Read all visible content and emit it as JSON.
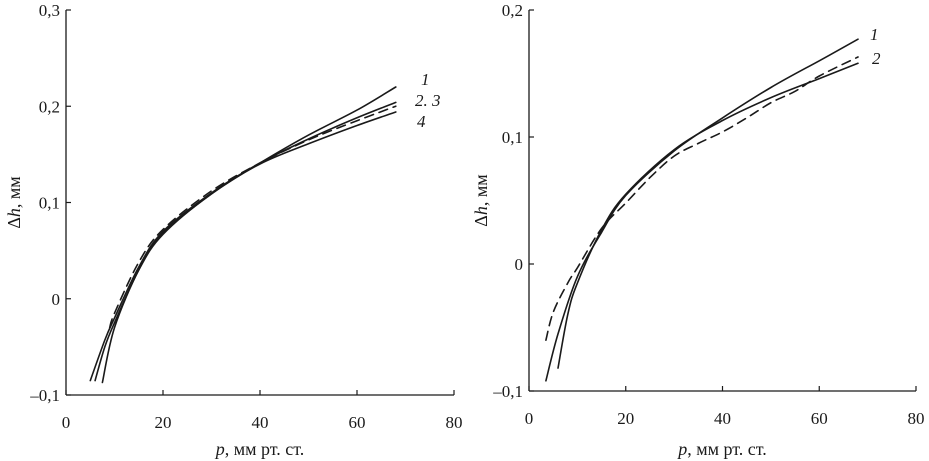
{
  "chart_data": [
    {
      "type": "line",
      "title": "",
      "xlabel": "p, мм рт. ст.",
      "ylabel": "Δh, мм",
      "xlim": [
        0,
        80
      ],
      "ylim": [
        -0.1,
        0.3
      ],
      "xticks": [
        "0",
        "20",
        "40",
        "60",
        "80"
      ],
      "yticks": [
        "–0,1",
        "0",
        "0,1",
        "0,2",
        "0,3"
      ],
      "curve_labels": [
        "1",
        "2. 3",
        "4"
      ],
      "series": [
        {
          "label": "1",
          "style": "solid",
          "x": [
            7.5,
            10,
            15,
            20,
            30,
            40,
            50,
            60,
            68
          ],
          "y": [
            -0.087,
            -0.03,
            0.03,
            0.068,
            0.109,
            0.141,
            0.17,
            0.196,
            0.22
          ]
        },
        {
          "label": "2. 3",
          "style": "solid",
          "x": [
            5,
            8,
            10,
            15,
            20,
            30,
            40,
            50,
            60,
            68
          ],
          "y": [
            -0.085,
            -0.043,
            -0.02,
            0.033,
            0.07,
            0.11,
            0.141,
            0.166,
            0.188,
            0.204
          ]
        },
        {
          "label": "2. 3",
          "style": "dashed",
          "x": [
            9,
            10,
            15,
            20,
            30,
            40,
            50,
            60,
            68
          ],
          "y": [
            -0.03,
            -0.015,
            0.038,
            0.072,
            0.112,
            0.141,
            0.165,
            0.185,
            0.2
          ]
        },
        {
          "label": "4",
          "style": "solid",
          "x": [
            6,
            8,
            10,
            15,
            20,
            30,
            40,
            50,
            60,
            68
          ],
          "y": [
            -0.085,
            -0.05,
            -0.025,
            0.03,
            0.067,
            0.109,
            0.14,
            0.161,
            0.18,
            0.194
          ]
        }
      ]
    },
    {
      "type": "line",
      "title": "",
      "xlabel": "p, мм рт. ст.",
      "ylabel": "Δh, мм",
      "xlim": [
        0,
        80
      ],
      "ylim": [
        -0.1,
        0.2
      ],
      "xticks": [
        "0",
        "20",
        "40",
        "60",
        "80"
      ],
      "yticks": [
        "–0,1",
        "0",
        "0,1",
        "0,2"
      ],
      "curve_labels": [
        "1",
        "2"
      ],
      "series": [
        {
          "label": "1",
          "style": "solid",
          "x": [
            3.5,
            6,
            10,
            15,
            20,
            30,
            40,
            50,
            60,
            68
          ],
          "y": [
            -0.092,
            -0.055,
            -0.01,
            0.025,
            0.054,
            0.089,
            0.115,
            0.139,
            0.16,
            0.177
          ]
        },
        {
          "label": "1",
          "style": "solid",
          "x": [
            6,
            8,
            10,
            15,
            20,
            30,
            40,
            50,
            60,
            68
          ],
          "y": [
            -0.082,
            -0.04,
            -0.015,
            0.027,
            0.055,
            0.09,
            0.113,
            0.131,
            0.146,
            0.158
          ]
        },
        {
          "label": "2",
          "style": "dashed",
          "x": [
            3.5,
            5,
            8,
            10,
            15,
            20,
            25,
            30,
            35,
            40,
            45,
            50,
            55,
            60,
            68
          ],
          "y": [
            -0.06,
            -0.038,
            -0.015,
            -0.003,
            0.028,
            0.048,
            0.068,
            0.085,
            0.095,
            0.104,
            0.115,
            0.127,
            0.136,
            0.148,
            0.163
          ]
        }
      ]
    }
  ]
}
